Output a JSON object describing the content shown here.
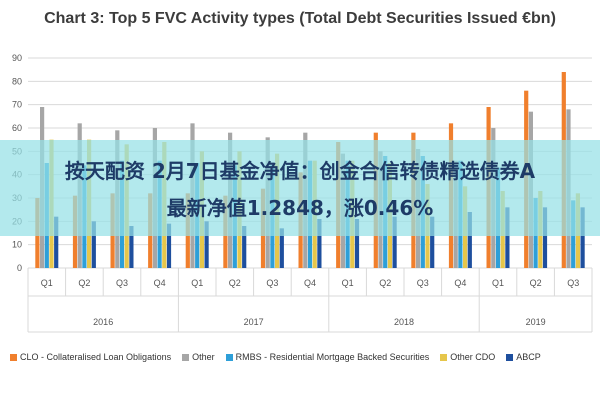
{
  "chart_data": {
    "type": "bar",
    "title": "Chart 3: Top 5 FVC Activity types (Total Debt Securities Issued €bn)",
    "ylim": [
      0,
      90
    ],
    "yticks": [
      0,
      10,
      20,
      30,
      40,
      50,
      60,
      70,
      80,
      90
    ],
    "categories": [
      "Q1",
      "Q2",
      "Q3",
      "Q4",
      "Q1",
      "Q2",
      "Q3",
      "Q4",
      "Q1",
      "Q2",
      "Q3",
      "Q4",
      "Q1",
      "Q2",
      "Q3"
    ],
    "groups": [
      {
        "label": "2016",
        "span": 4
      },
      {
        "label": "2017",
        "span": 4
      },
      {
        "label": "2018",
        "span": 4
      },
      {
        "label": "2019",
        "span": 3
      }
    ],
    "series": [
      {
        "name": "CLO - Collateralised Loan Obligations",
        "color": "#f07f2d",
        "values": [
          30,
          31,
          32,
          32,
          32,
          31,
          34,
          41,
          54,
          58,
          58,
          62,
          69,
          76,
          84
        ]
      },
      {
        "name": "Other",
        "color": "#a6a6a6",
        "values": [
          69,
          62,
          59,
          60,
          62,
          58,
          56,
          58,
          49,
          50,
          51,
          46,
          60,
          67,
          68
        ]
      },
      {
        "name": "RMBS - Residential Mortgage Backed Securities",
        "color": "#2e9fd8",
        "values": [
          45,
          44,
          46,
          46,
          45,
          44,
          44,
          46,
          46,
          48,
          48,
          46,
          43,
          30,
          29
        ]
      },
      {
        "name": "Other CDO",
        "color": "#e6c64b",
        "values": [
          55,
          55,
          53,
          54,
          50,
          50,
          49,
          46,
          46,
          45,
          36,
          35,
          33,
          33,
          32
        ]
      },
      {
        "name": "ABCP",
        "color": "#1e4f9e",
        "values": [
          22,
          20,
          18,
          19,
          20,
          18,
          17,
          21,
          21,
          22,
          22,
          24,
          26,
          26,
          26
        ]
      }
    ],
    "grid": true,
    "legend_position": "bottom"
  },
  "overlay": {
    "line1": "按天配资 2月7日基金净值：创金合信转债精选债券A",
    "line2": "最新净值1.2848，涨0.46%"
  }
}
